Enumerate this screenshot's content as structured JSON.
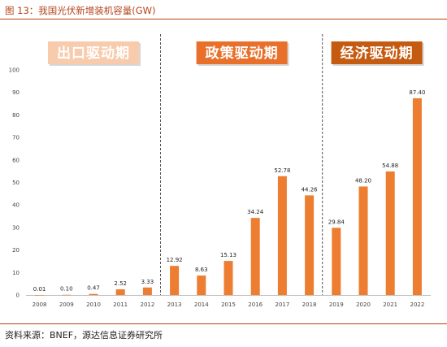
{
  "figure": {
    "title": "图 13：我国光伏新增装机容量(GW)",
    "source": "资料来源：BNEF，源达信息证券研究所"
  },
  "chart_data": {
    "type": "bar",
    "title": "",
    "xlabel": "",
    "ylabel": "",
    "ylim": [
      0,
      100
    ],
    "yticks": [
      0,
      10,
      20,
      30,
      40,
      50,
      60,
      70,
      80,
      90,
      100
    ],
    "categories": [
      "2008",
      "2009",
      "2010",
      "2011",
      "2012",
      "2013",
      "2014",
      "2015",
      "2016",
      "2017",
      "2018",
      "2019",
      "2020",
      "2021",
      "2022"
    ],
    "values": [
      0.01,
      0.1,
      0.47,
      2.52,
      3.33,
      12.92,
      8.63,
      15.13,
      34.24,
      52.78,
      44.26,
      29.84,
      48.2,
      54.88,
      87.4
    ],
    "value_labels": [
      "0.01",
      "0.10",
      "0.47",
      "2.52",
      "3.33",
      "12.92",
      "8.63",
      "15.13",
      "34.24",
      "52.78",
      "44.26",
      "29.84",
      "48.20",
      "54.88",
      "87.40"
    ],
    "bar_color": "#ed7d31",
    "grid": false,
    "phases": [
      {
        "label": "出口驱动期",
        "first": "2008",
        "last": "2012",
        "color": "#f8cbad"
      },
      {
        "label": "政策驱动期",
        "first": "2013",
        "last": "2018",
        "color": "#e8702a"
      },
      {
        "label": "经济驱动期",
        "first": "2019",
        "last": "2022",
        "color": "#c55a11"
      }
    ]
  }
}
